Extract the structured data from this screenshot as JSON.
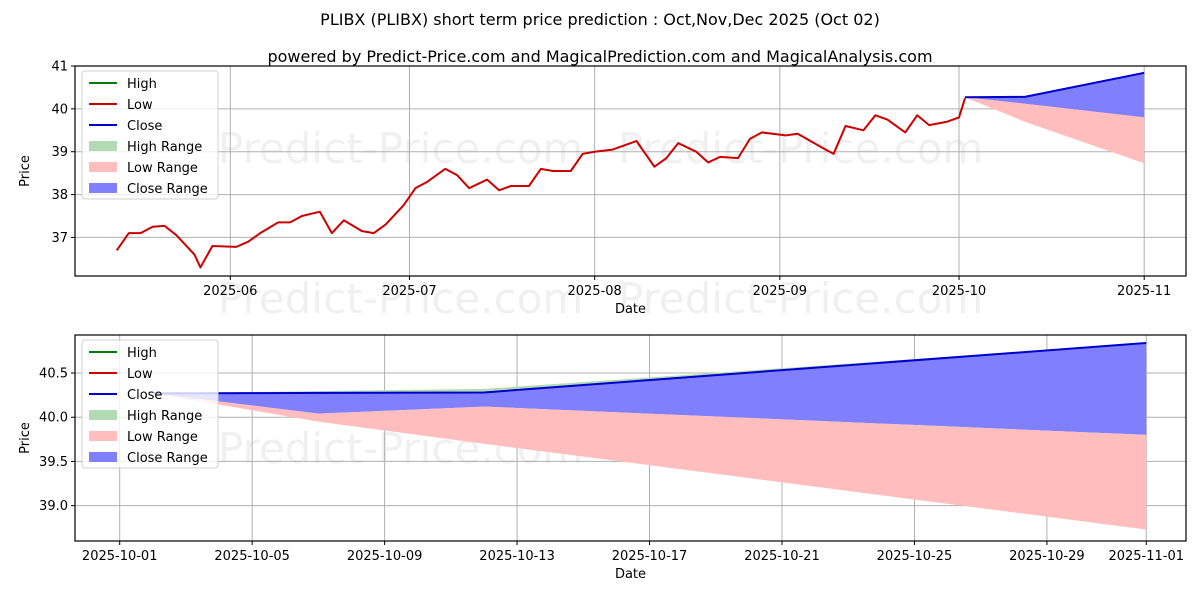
{
  "header": {
    "title": "PLIBX (PLIBX) short term price prediction : Oct,Nov,Dec 2025 (Oct 02)",
    "subtitle": "powered by Predict-Price.com and MagicalPrediction.com and MagicalAnalysis.com"
  },
  "watermark": "Predict-Price.com",
  "legend": {
    "items": [
      {
        "label": "High",
        "type": "line",
        "color": "#008000"
      },
      {
        "label": "Low",
        "type": "line",
        "color": "#cc0000"
      },
      {
        "label": "Close",
        "type": "line",
        "color": "#0000cc"
      },
      {
        "label": "High Range",
        "type": "patch",
        "color": "#b3dbb3"
      },
      {
        "label": "Low Range",
        "type": "patch",
        "color": "#ffbdbd"
      },
      {
        "label": "Close Range",
        "type": "patch",
        "color": "#8080ff"
      }
    ]
  },
  "chart_data": [
    {
      "type": "line",
      "title": "",
      "xlabel": "Date",
      "ylabel": "Price",
      "ylim": [
        36.1,
        41.0
      ],
      "y_ticks": [
        37,
        38,
        39,
        40,
        41
      ],
      "x_ticks": [
        "2025-06",
        "2025-07",
        "2025-08",
        "2025-09",
        "2025-10",
        "2025-11"
      ],
      "grid": true,
      "legend_position": "upper left",
      "series": [
        {
          "name": "Low (historical)",
          "color": "#cc0000",
          "x": [
            "2025-05-13",
            "2025-05-15",
            "2025-05-17",
            "2025-05-19",
            "2025-05-21",
            "2025-05-23",
            "2025-05-26",
            "2025-05-27",
            "2025-05-28",
            "2025-05-29",
            "2025-06-02",
            "2025-06-04",
            "2025-06-06",
            "2025-06-09",
            "2025-06-11",
            "2025-06-13",
            "2025-06-16",
            "2025-06-18",
            "2025-06-20",
            "2025-06-23",
            "2025-06-25",
            "2025-06-27",
            "2025-06-30",
            "2025-07-02",
            "2025-07-04",
            "2025-07-07",
            "2025-07-09",
            "2025-07-11",
            "2025-07-14",
            "2025-07-16",
            "2025-07-18",
            "2025-07-21",
            "2025-07-23",
            "2025-07-25",
            "2025-07-28",
            "2025-07-30",
            "2025-08-01",
            "2025-08-04",
            "2025-08-06",
            "2025-08-08",
            "2025-08-11",
            "2025-08-13",
            "2025-08-15",
            "2025-08-18",
            "2025-08-20",
            "2025-08-22",
            "2025-08-25",
            "2025-08-27",
            "2025-08-29",
            "2025-09-02",
            "2025-09-04",
            "2025-09-08",
            "2025-09-10",
            "2025-09-12",
            "2025-09-15",
            "2025-09-17",
            "2025-09-19",
            "2025-09-22",
            "2025-09-24",
            "2025-09-26",
            "2025-09-29",
            "2025-10-01",
            "2025-10-02"
          ],
          "values": [
            36.7,
            37.1,
            37.1,
            37.25,
            37.27,
            37.05,
            36.6,
            36.3,
            36.55,
            36.8,
            36.78,
            36.9,
            37.1,
            37.35,
            37.35,
            37.5,
            37.6,
            37.1,
            37.4,
            37.15,
            37.1,
            37.3,
            37.75,
            38.15,
            38.3,
            38.6,
            38.45,
            38.15,
            38.35,
            38.1,
            38.2,
            38.2,
            38.6,
            38.55,
            38.55,
            38.95,
            39.0,
            39.05,
            39.15,
            39.25,
            38.65,
            38.85,
            39.2,
            39.0,
            38.75,
            38.88,
            38.85,
            39.3,
            39.45,
            39.38,
            39.42,
            39.1,
            38.95,
            39.6,
            39.5,
            39.85,
            39.75,
            39.45,
            39.85,
            39.62,
            39.7,
            39.8,
            40.25
          ]
        },
        {
          "name": "Close (forecast)",
          "color": "#0000cc",
          "x": [
            "2025-10-02",
            "2025-10-12",
            "2025-11-01"
          ],
          "values": [
            40.27,
            40.28,
            40.84
          ]
        },
        {
          "name": "Close Range (forecast band)",
          "color": "#8080ff",
          "x": [
            "2025-10-02",
            "2025-10-12",
            "2025-11-01"
          ],
          "upper": [
            40.27,
            40.28,
            40.84
          ],
          "lower": [
            40.27,
            40.12,
            39.8
          ]
        },
        {
          "name": "Low Range (forecast band)",
          "color": "#ffbdbd",
          "x": [
            "2025-10-02",
            "2025-10-12",
            "2025-11-01"
          ],
          "upper": [
            40.27,
            40.12,
            39.8
          ],
          "lower": [
            40.27,
            39.7,
            38.73
          ]
        }
      ]
    },
    {
      "type": "area",
      "title": "",
      "xlabel": "Date",
      "ylabel": "Price",
      "ylim": [
        38.6,
        40.93
      ],
      "y_ticks": [
        39.0,
        39.5,
        40.0,
        40.5
      ],
      "x_ticks": [
        "2025-10-01",
        "2025-10-05",
        "2025-10-09",
        "2025-10-13",
        "2025-10-17",
        "2025-10-21",
        "2025-10-25",
        "2025-10-29",
        "2025-11-01"
      ],
      "grid": true,
      "legend_position": "upper left",
      "series": [
        {
          "name": "Close",
          "color": "#0000cc",
          "x": [
            "2025-10-02",
            "2025-10-12",
            "2025-11-01"
          ],
          "values": [
            40.27,
            40.28,
            40.84
          ]
        },
        {
          "name": "High Range",
          "color": "#b3dbb3",
          "x": [
            "2025-10-02",
            "2025-10-12",
            "2025-11-01"
          ],
          "upper": [
            40.27,
            40.32,
            40.84
          ],
          "lower": [
            40.27,
            40.28,
            40.84
          ]
        },
        {
          "name": "Close Range",
          "color": "#8080ff",
          "x": [
            "2025-10-02",
            "2025-10-07",
            "2025-10-12",
            "2025-11-01"
          ],
          "upper": [
            40.27,
            40.27,
            40.28,
            40.84
          ],
          "lower": [
            40.27,
            40.04,
            40.12,
            39.8
          ]
        },
        {
          "name": "Low Range",
          "color": "#ffbdbd",
          "x": [
            "2025-10-02",
            "2025-10-07",
            "2025-10-12",
            "2025-11-01"
          ],
          "upper": [
            40.27,
            40.04,
            40.12,
            39.8
          ],
          "lower": [
            40.27,
            39.95,
            39.7,
            38.73
          ]
        }
      ]
    }
  ]
}
